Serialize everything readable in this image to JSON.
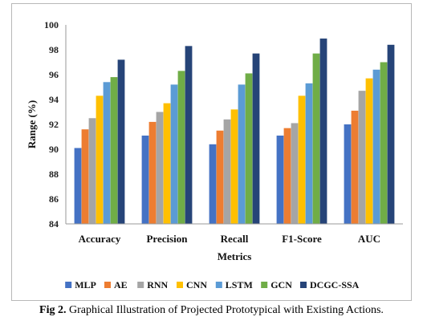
{
  "caption": {
    "label": "Fig 2.",
    "text": "Graphical Illustration of Projected Prototypical with Existing Actions."
  },
  "chart_data": {
    "type": "bar",
    "title": "",
    "xlabel": "Metrics",
    "ylabel": "Range (%)",
    "ylim": [
      84,
      100
    ],
    "yticks": [
      84,
      86,
      88,
      90,
      92,
      94,
      96,
      98,
      100
    ],
    "grid": false,
    "legend": "bottom",
    "categories": [
      "Accuracy",
      "Precision",
      "Recall",
      "F1-Score",
      "AUC"
    ],
    "series": [
      {
        "name": "MLP",
        "color": "#4472C4",
        "values": [
          90.1,
          91.1,
          90.4,
          91.1,
          92.0
        ]
      },
      {
        "name": "AE",
        "color": "#ED7D31",
        "values": [
          91.6,
          92.2,
          91.5,
          91.7,
          93.1
        ]
      },
      {
        "name": "RNN",
        "color": "#A5A5A5",
        "values": [
          92.5,
          93.0,
          92.4,
          92.1,
          94.7
        ]
      },
      {
        "name": "CNN",
        "color": "#FFC000",
        "values": [
          94.3,
          93.7,
          93.2,
          94.3,
          95.7
        ]
      },
      {
        "name": "LSTM",
        "color": "#5B9BD5",
        "values": [
          95.4,
          95.2,
          95.2,
          95.3,
          96.4
        ]
      },
      {
        "name": "GCN",
        "color": "#70AD47",
        "values": [
          95.8,
          96.3,
          96.1,
          97.7,
          97.0
        ]
      },
      {
        "name": "DCGC-SSA",
        "color": "#264478",
        "values": [
          97.2,
          98.3,
          97.7,
          98.9,
          98.4
        ]
      }
    ]
  }
}
